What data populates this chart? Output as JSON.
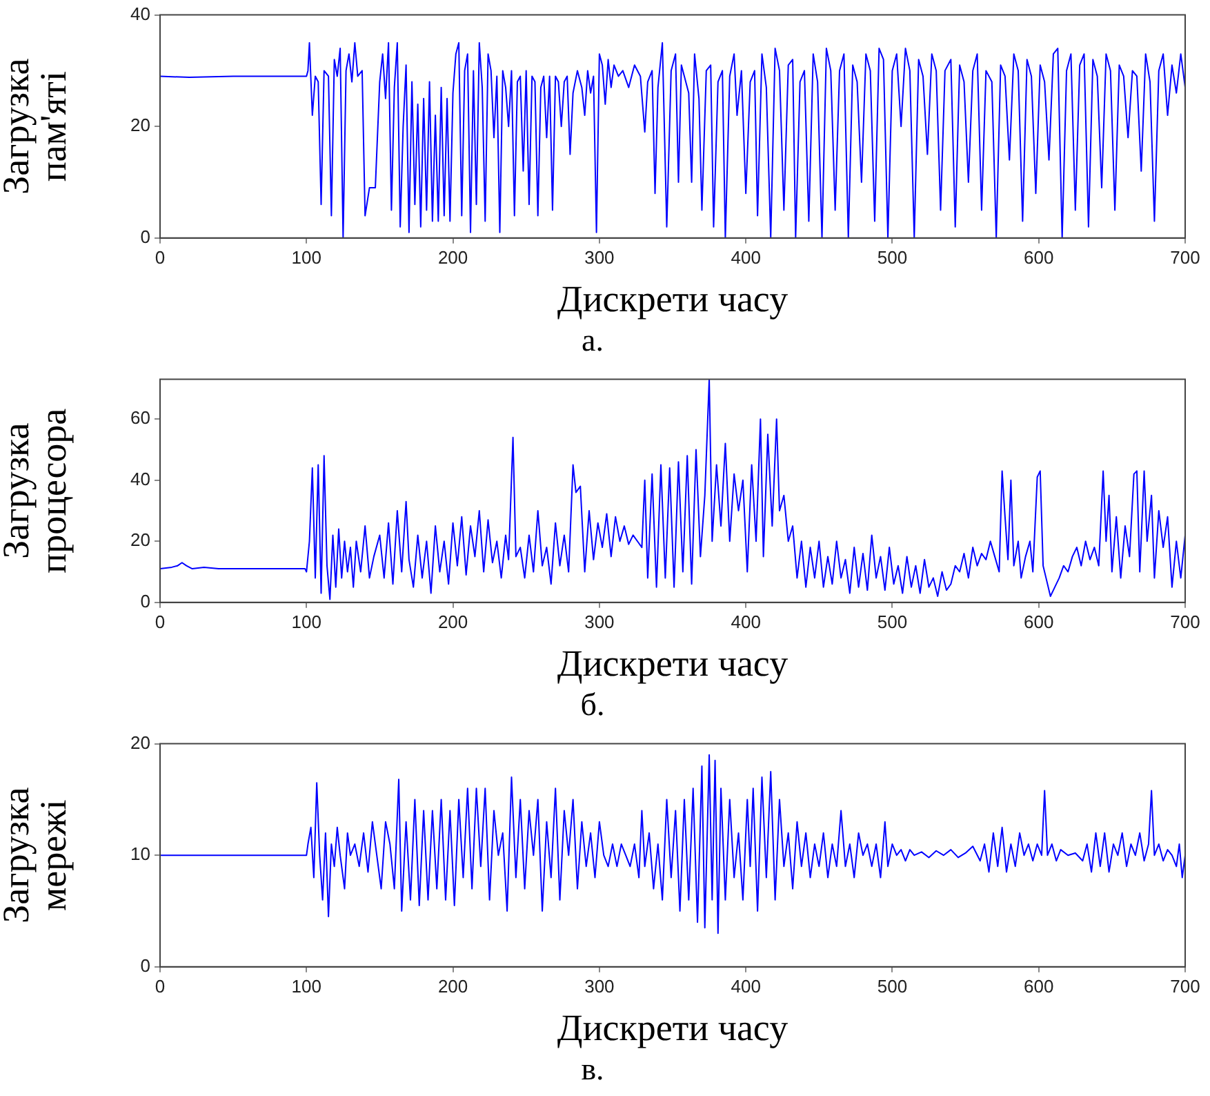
{
  "chart_data": [
    {
      "type": "line",
      "ylabel": "Загрузка пам'яті",
      "xlabel": "Дискрети часу",
      "annotations": [
        "а."
      ],
      "color": "#0000ff",
      "xlim": [
        0,
        700
      ],
      "xticks": [
        0,
        100,
        200,
        300,
        400,
        500,
        600,
        700
      ],
      "ylim": [
        0,
        40
      ],
      "yticks": [
        0,
        20,
        40
      ],
      "grid": false,
      "legend": false,
      "x": [
        0,
        20,
        50,
        99,
        100,
        101,
        102,
        104,
        106,
        108,
        110,
        112,
        115,
        117,
        119,
        121,
        123,
        125,
        127,
        129,
        131,
        133,
        135,
        138,
        140,
        143,
        147,
        150,
        152,
        154,
        156,
        158,
        160,
        162,
        164,
        166,
        168,
        170,
        172,
        174,
        176,
        178,
        180,
        182,
        184,
        186,
        188,
        190,
        192,
        194,
        196,
        198,
        200,
        202,
        204,
        206,
        208,
        210,
        212,
        214,
        216,
        218,
        220,
        222,
        224,
        226,
        228,
        230,
        232,
        234,
        236,
        238,
        240,
        242,
        244,
        246,
        248,
        250,
        252,
        254,
        256,
        258,
        260,
        262,
        264,
        266,
        268,
        270,
        272,
        274,
        276,
        278,
        280,
        282,
        285,
        288,
        290,
        292,
        294,
        296,
        298,
        300,
        302,
        304,
        306,
        308,
        310,
        313,
        316,
        320,
        324,
        328,
        331,
        333,
        336,
        338,
        340,
        343,
        346,
        349,
        352,
        354,
        356,
        358,
        361,
        363,
        365,
        368,
        370,
        373,
        376,
        378,
        381,
        384,
        386,
        389,
        392,
        394,
        397,
        400,
        403,
        406,
        408,
        411,
        414,
        417,
        420,
        423,
        426,
        429,
        432,
        434,
        437,
        440,
        443,
        446,
        449,
        452,
        455,
        458,
        461,
        464,
        467,
        470,
        473,
        476,
        479,
        482,
        485,
        488,
        491,
        494,
        497,
        500,
        503,
        506,
        509,
        512,
        515,
        518,
        521,
        524,
        527,
        530,
        533,
        536,
        540,
        543,
        546,
        549,
        552,
        555,
        558,
        561,
        564,
        568,
        571,
        574,
        577,
        580,
        583,
        586,
        589,
        592,
        595,
        598,
        601,
        604,
        607,
        610,
        613,
        616,
        619,
        622,
        625,
        628,
        631,
        634,
        637,
        640,
        643,
        646,
        649,
        652,
        655,
        658,
        661,
        664,
        667,
        670,
        673,
        676,
        679,
        682,
        685,
        688,
        691,
        694,
        697,
        700
      ],
      "values": [
        29,
        28.8,
        29,
        29,
        29,
        30,
        35,
        22,
        29,
        28,
        6,
        30,
        29,
        4,
        32,
        29,
        34,
        0,
        30,
        33,
        28,
        35,
        29,
        30,
        4,
        9,
        9,
        28,
        33,
        25,
        35,
        5,
        27,
        35,
        2,
        20,
        31,
        1,
        28,
        6,
        24,
        2,
        25,
        5,
        28,
        3,
        22,
        3,
        27,
        4,
        25,
        3,
        26,
        33,
        35,
        4,
        30,
        33,
        1,
        30,
        6,
        35,
        27,
        3,
        33,
        30,
        18,
        29,
        1,
        30,
        27,
        20,
        30,
        4,
        28,
        29,
        12,
        30,
        6,
        29,
        28,
        4,
        27,
        29,
        18,
        29,
        5,
        29,
        28,
        20,
        28,
        29,
        15,
        26,
        30,
        27,
        22,
        30,
        26,
        29,
        1,
        33,
        31,
        24,
        32,
        27,
        31,
        29,
        30,
        27,
        31,
        29,
        19,
        28,
        30,
        8,
        27,
        35,
        2,
        30,
        33,
        10,
        31,
        29,
        26,
        10,
        33,
        25,
        5,
        30,
        31,
        2,
        28,
        30,
        0,
        29,
        33,
        22,
        30,
        8,
        28,
        30,
        4,
        33,
        27,
        0,
        34,
        30,
        5,
        31,
        32,
        0,
        28,
        30,
        3,
        33,
        28,
        0,
        34,
        30,
        5,
        30,
        33,
        0,
        31,
        28,
        10,
        33,
        30,
        3,
        34,
        32,
        0,
        30,
        33,
        20,
        34,
        30,
        0,
        32,
        29,
        15,
        33,
        30,
        5,
        30,
        32,
        2,
        31,
        28,
        10,
        30,
        33,
        5,
        30,
        28,
        0,
        31,
        29,
        14,
        33,
        30,
        3,
        32,
        29,
        8,
        31,
        28,
        14,
        33,
        34,
        0,
        30,
        33,
        5,
        31,
        33,
        2,
        32,
        29,
        9,
        33,
        30,
        5,
        31,
        29,
        18,
        30,
        29,
        12,
        33,
        28,
        3,
        30,
        33,
        22,
        31,
        26,
        33,
        27
      ]
    },
    {
      "type": "line",
      "ylabel": "Загрузка процесора",
      "xlabel": "Дискрети часу",
      "annotations": [
        "б."
      ],
      "color": "#0000ff",
      "xlim": [
        0,
        700
      ],
      "xticks": [
        0,
        100,
        200,
        300,
        400,
        500,
        600,
        700
      ],
      "ylim": [
        0,
        73
      ],
      "yticks": [
        0,
        20,
        40,
        60
      ],
      "grid": false,
      "legend": false,
      "x": [
        0,
        8,
        12,
        15,
        18,
        22,
        30,
        40,
        60,
        99,
        100,
        102,
        104,
        106,
        108,
        110,
        112,
        114,
        116,
        118,
        120,
        122,
        124,
        126,
        128,
        130,
        132,
        134,
        137,
        140,
        143,
        146,
        150,
        153,
        156,
        159,
        162,
        165,
        168,
        170,
        173,
        176,
        179,
        182,
        185,
        188,
        191,
        194,
        197,
        200,
        203,
        206,
        209,
        212,
        215,
        218,
        221,
        224,
        227,
        230,
        233,
        236,
        238,
        241,
        243,
        246,
        249,
        252,
        255,
        258,
        261,
        264,
        267,
        270,
        273,
        276,
        279,
        282,
        284,
        287,
        290,
        293,
        296,
        299,
        302,
        305,
        308,
        311,
        314,
        317,
        320,
        323,
        326,
        329,
        331,
        333,
        336,
        339,
        342,
        345,
        348,
        351,
        354,
        357,
        360,
        363,
        366,
        369,
        372,
        375,
        377,
        380,
        383,
        386,
        389,
        392,
        395,
        398,
        401,
        404,
        407,
        410,
        412,
        415,
        418,
        421,
        423,
        426,
        429,
        432,
        435,
        438,
        441,
        444,
        447,
        450,
        453,
        456,
        459,
        462,
        465,
        468,
        471,
        474,
        477,
        480,
        483,
        486,
        489,
        492,
        495,
        498,
        501,
        504,
        507,
        510,
        513,
        516,
        519,
        522,
        525,
        528,
        531,
        534,
        537,
        540,
        543,
        546,
        549,
        552,
        555,
        558,
        561,
        564,
        567,
        570,
        573,
        575,
        577,
        579,
        581,
        583,
        586,
        588,
        591,
        594,
        596,
        599,
        601,
        603,
        605,
        608,
        611,
        614,
        617,
        620,
        623,
        626,
        629,
        632,
        635,
        638,
        641,
        644,
        646,
        648,
        650,
        653,
        656,
        659,
        662,
        665,
        667,
        669,
        672,
        674,
        677,
        679,
        682,
        685,
        688,
        691,
        694,
        697,
        700
      ],
      "values": [
        11,
        11.5,
        12,
        13,
        12,
        11,
        11.5,
        11,
        11,
        11,
        10,
        20,
        44,
        8,
        45,
        3,
        48,
        12,
        1,
        22,
        5,
        24,
        8,
        20,
        10,
        18,
        5,
        20,
        10,
        25,
        8,
        15,
        22,
        8,
        26,
        6,
        30,
        10,
        33,
        14,
        5,
        22,
        8,
        20,
        3,
        25,
        10,
        20,
        6,
        26,
        12,
        28,
        9,
        25,
        15,
        30,
        10,
        27,
        13,
        20,
        8,
        22,
        14,
        54,
        15,
        18,
        8,
        22,
        10,
        30,
        12,
        18,
        6,
        26,
        12,
        22,
        10,
        45,
        36,
        38,
        10,
        30,
        14,
        26,
        18,
        29,
        15,
        28,
        20,
        25,
        19,
        22,
        20,
        18,
        40,
        8,
        42,
        5,
        45,
        8,
        44,
        5,
        46,
        10,
        48,
        6,
        50,
        15,
        35,
        73,
        20,
        45,
        25,
        52,
        20,
        42,
        30,
        40,
        10,
        45,
        20,
        60,
        15,
        55,
        25,
        60,
        30,
        35,
        20,
        25,
        8,
        20,
        5,
        18,
        8,
        20,
        5,
        15,
        6,
        20,
        8,
        14,
        3,
        18,
        5,
        16,
        4,
        22,
        8,
        15,
        4,
        18,
        6,
        12,
        3,
        15,
        5,
        12,
        3,
        14,
        5,
        8,
        2,
        10,
        4,
        6,
        12,
        10,
        16,
        8,
        18,
        12,
        16,
        14,
        20,
        15,
        10,
        43,
        28,
        14,
        40,
        12,
        20,
        8,
        15,
        20,
        10,
        41,
        43,
        12,
        8,
        2,
        5,
        8,
        12,
        10,
        15,
        18,
        12,
        20,
        14,
        18,
        12,
        43,
        20,
        35,
        10,
        28,
        8,
        25,
        15,
        42,
        43,
        10,
        43,
        20,
        35,
        8,
        30,
        18,
        28,
        5,
        20,
        8,
        22
      ]
    },
    {
      "type": "line",
      "ylabel": "Загрузка мережі",
      "xlabel": "Дискрети часу",
      "annotations": [
        "в."
      ],
      "color": "#0000ff",
      "xlim": [
        0,
        700
      ],
      "xticks": [
        0,
        100,
        200,
        300,
        400,
        500,
        600,
        700
      ],
      "ylim": [
        0,
        20
      ],
      "yticks": [
        0,
        10,
        20
      ],
      "grid": false,
      "legend": false,
      "x": [
        0,
        50,
        99,
        100,
        101,
        103,
        105,
        107,
        109,
        111,
        113,
        115,
        117,
        119,
        121,
        123,
        126,
        128,
        130,
        133,
        136,
        139,
        142,
        145,
        148,
        151,
        154,
        157,
        160,
        163,
        165,
        168,
        171,
        174,
        177,
        180,
        183,
        186,
        189,
        192,
        195,
        198,
        201,
        204,
        207,
        210,
        213,
        216,
        219,
        222,
        225,
        228,
        231,
        234,
        237,
        240,
        243,
        246,
        249,
        252,
        255,
        258,
        261,
        264,
        267,
        270,
        273,
        276,
        279,
        282,
        285,
        288,
        291,
        294,
        297,
        300,
        303,
        306,
        309,
        312,
        315,
        318,
        321,
        324,
        327,
        329,
        331,
        334,
        337,
        340,
        343,
        346,
        349,
        352,
        355,
        358,
        361,
        364,
        367,
        370,
        372,
        375,
        377,
        379,
        381,
        383,
        386,
        389,
        392,
        395,
        398,
        401,
        403,
        405,
        408,
        411,
        414,
        417,
        420,
        423,
        426,
        429,
        432,
        435,
        438,
        441,
        444,
        447,
        450,
        453,
        456,
        459,
        462,
        465,
        468,
        471,
        474,
        477,
        480,
        483,
        486,
        489,
        492,
        495,
        497,
        500,
        503,
        506,
        509,
        512,
        515,
        520,
        525,
        530,
        535,
        540,
        545,
        550,
        555,
        560,
        563,
        566,
        569,
        572,
        575,
        578,
        581,
        584,
        587,
        590,
        593,
        596,
        599,
        602,
        604,
        606,
        609,
        612,
        615,
        620,
        625,
        630,
        633,
        636,
        639,
        642,
        645,
        648,
        651,
        654,
        657,
        660,
        663,
        666,
        669,
        672,
        675,
        677,
        679,
        682,
        685,
        688,
        691,
        694,
        696,
        698,
        700
      ],
      "values": [
        10,
        10,
        10,
        10,
        11,
        12.5,
        8,
        16.5,
        10,
        6,
        12,
        4.5,
        11,
        9,
        12.5,
        10,
        7,
        12,
        10,
        11,
        9,
        12,
        8.5,
        13,
        10,
        7,
        13,
        11,
        7,
        16.8,
        5,
        13,
        6,
        15,
        5.5,
        14,
        6,
        14,
        7,
        15,
        6,
        14,
        5.5,
        15,
        8,
        16,
        7,
        16,
        9,
        16,
        6,
        14,
        10,
        12,
        5,
        17,
        8,
        15,
        7,
        14,
        10,
        15,
        5,
        13,
        8,
        16,
        6,
        14,
        10,
        15,
        7,
        13,
        9,
        12,
        8,
        13,
        10,
        9,
        11,
        9,
        11,
        10,
        9,
        11,
        8,
        14,
        9,
        12,
        7,
        11,
        6,
        15,
        8,
        14,
        5,
        15,
        6,
        16,
        4,
        18,
        3.5,
        19,
        6,
        18.5,
        3,
        16,
        6,
        15,
        8,
        12,
        6,
        15,
        9,
        16,
        5,
        17,
        8,
        17.5,
        6,
        15,
        9,
        12,
        7,
        13,
        9,
        12,
        8,
        11,
        9,
        12,
        8,
        11,
        9,
        14,
        9,
        11,
        8,
        12,
        10,
        11,
        9,
        11,
        8,
        13,
        9,
        11,
        10,
        10.5,
        9.5,
        10.5,
        10,
        10.3,
        9.8,
        10.4,
        10,
        10.5,
        9.8,
        10.2,
        10.8,
        9.5,
        11,
        8.5,
        12,
        9,
        12.5,
        8.5,
        11,
        9,
        12,
        10,
        11,
        9.5,
        11,
        10,
        15.8,
        10,
        11,
        9.5,
        10.5,
        10,
        10.2,
        9.5,
        11,
        8.5,
        12,
        9,
        12,
        8.5,
        11,
        10,
        12,
        9,
        11,
        10,
        12,
        9.5,
        11,
        15.8,
        10,
        11,
        9.5,
        10.5,
        10,
        9,
        11,
        8,
        10
      ]
    }
  ]
}
